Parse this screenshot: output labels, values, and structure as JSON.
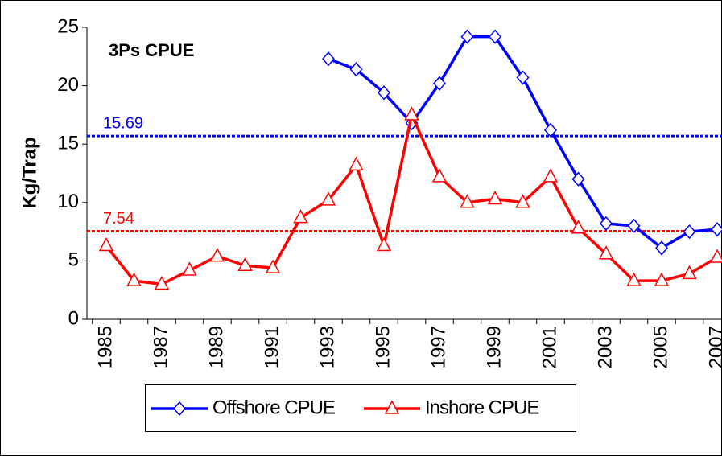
{
  "chart_data": {
    "type": "line",
    "title": "3Ps CPUE",
    "y_label": "Kg/Trap",
    "categories": [
      "1985",
      null,
      "1987",
      null,
      "1989",
      null,
      "1991",
      null,
      "1993",
      null,
      "1995",
      null,
      "1997",
      null,
      "1999",
      null,
      "2001",
      null,
      "2003",
      null,
      "2005",
      null,
      "2007"
    ],
    "series": [
      {
        "name": "Offshore CPUE",
        "color": "#0000ff",
        "marker": "diamond",
        "values": [
          null,
          null,
          null,
          null,
          null,
          null,
          null,
          null,
          22.3,
          21.4,
          19.4,
          16.8,
          20.2,
          24.2,
          24.2,
          20.7,
          16.2,
          12.0,
          8.2,
          8.0,
          6.1,
          7.5,
          7.7
        ]
      },
      {
        "name": "Inshore CPUE",
        "color": "#ff0000",
        "marker": "triangle",
        "values": [
          6.3,
          3.3,
          3.0,
          4.2,
          5.4,
          4.6,
          4.4,
          8.7,
          10.2,
          13.2,
          6.3,
          17.5,
          12.2,
          10.0,
          10.3,
          10.0,
          12.2,
          7.8,
          5.6,
          3.3,
          3.3,
          3.9,
          5.3
        ]
      }
    ],
    "reference_lines": [
      {
        "value": 15.69,
        "color": "#0000ff"
      },
      {
        "value": 7.54,
        "color": "#ff0000"
      }
    ],
    "ylim": [
      0,
      25
    ],
    "yticks": [
      0,
      5,
      10,
      15,
      20,
      25
    ],
    "legend": "bottom"
  }
}
